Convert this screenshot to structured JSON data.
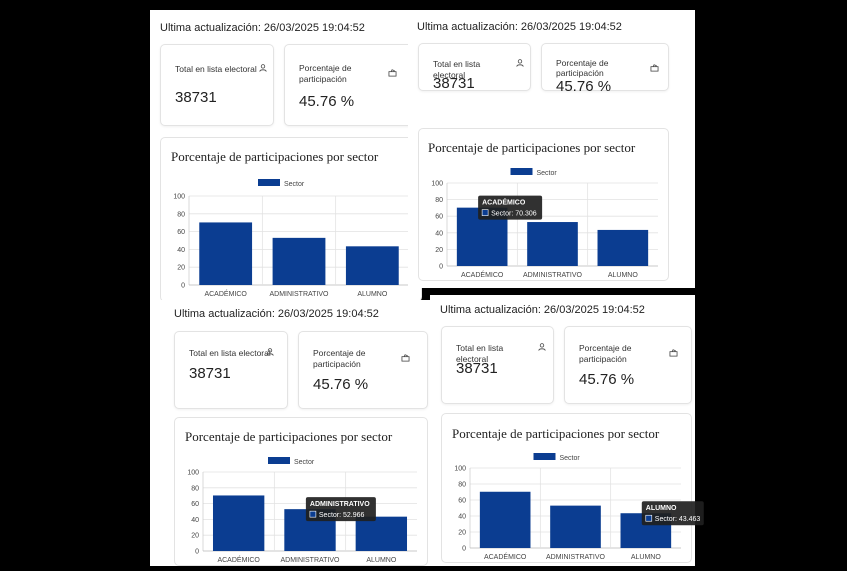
{
  "updated_label": "Ultima actualización: 26/03/2025 19:04:52",
  "stat_total": {
    "label": "Total en lista electoral",
    "value": "38731",
    "icon": "user-icon"
  },
  "stat_participation": {
    "label_line1": "Porcentaje de",
    "label_line2": "participación",
    "value": "45.76 %",
    "icon": "ballot-box-icon"
  },
  "chart_title": "Porcentaje de participaciones por sector",
  "chart_data": {
    "type": "bar",
    "title": "Porcentaje de participaciones por sector",
    "categories": [
      "ACADÉMICO",
      "ADMINISTRATIVO",
      "ALUMNO"
    ],
    "series": [
      {
        "name": "Sector",
        "values": [
          70.306,
          52.966,
          43.463
        ]
      }
    ],
    "ylim": [
      0,
      100
    ],
    "yticks": [
      "0",
      "20",
      "40",
      "60",
      "80",
      "100"
    ],
    "legend": "top-center",
    "grid": true,
    "color": "#0b3d91"
  },
  "tooltips": [
    {
      "title": "ACADÉMICO",
      "text": "Sector: 70.306"
    },
    {
      "title": "ADMINISTRATIVO",
      "text": "Sector: 52.966"
    },
    {
      "title": "ALUMNO",
      "text": "Sector: 43.463"
    }
  ]
}
